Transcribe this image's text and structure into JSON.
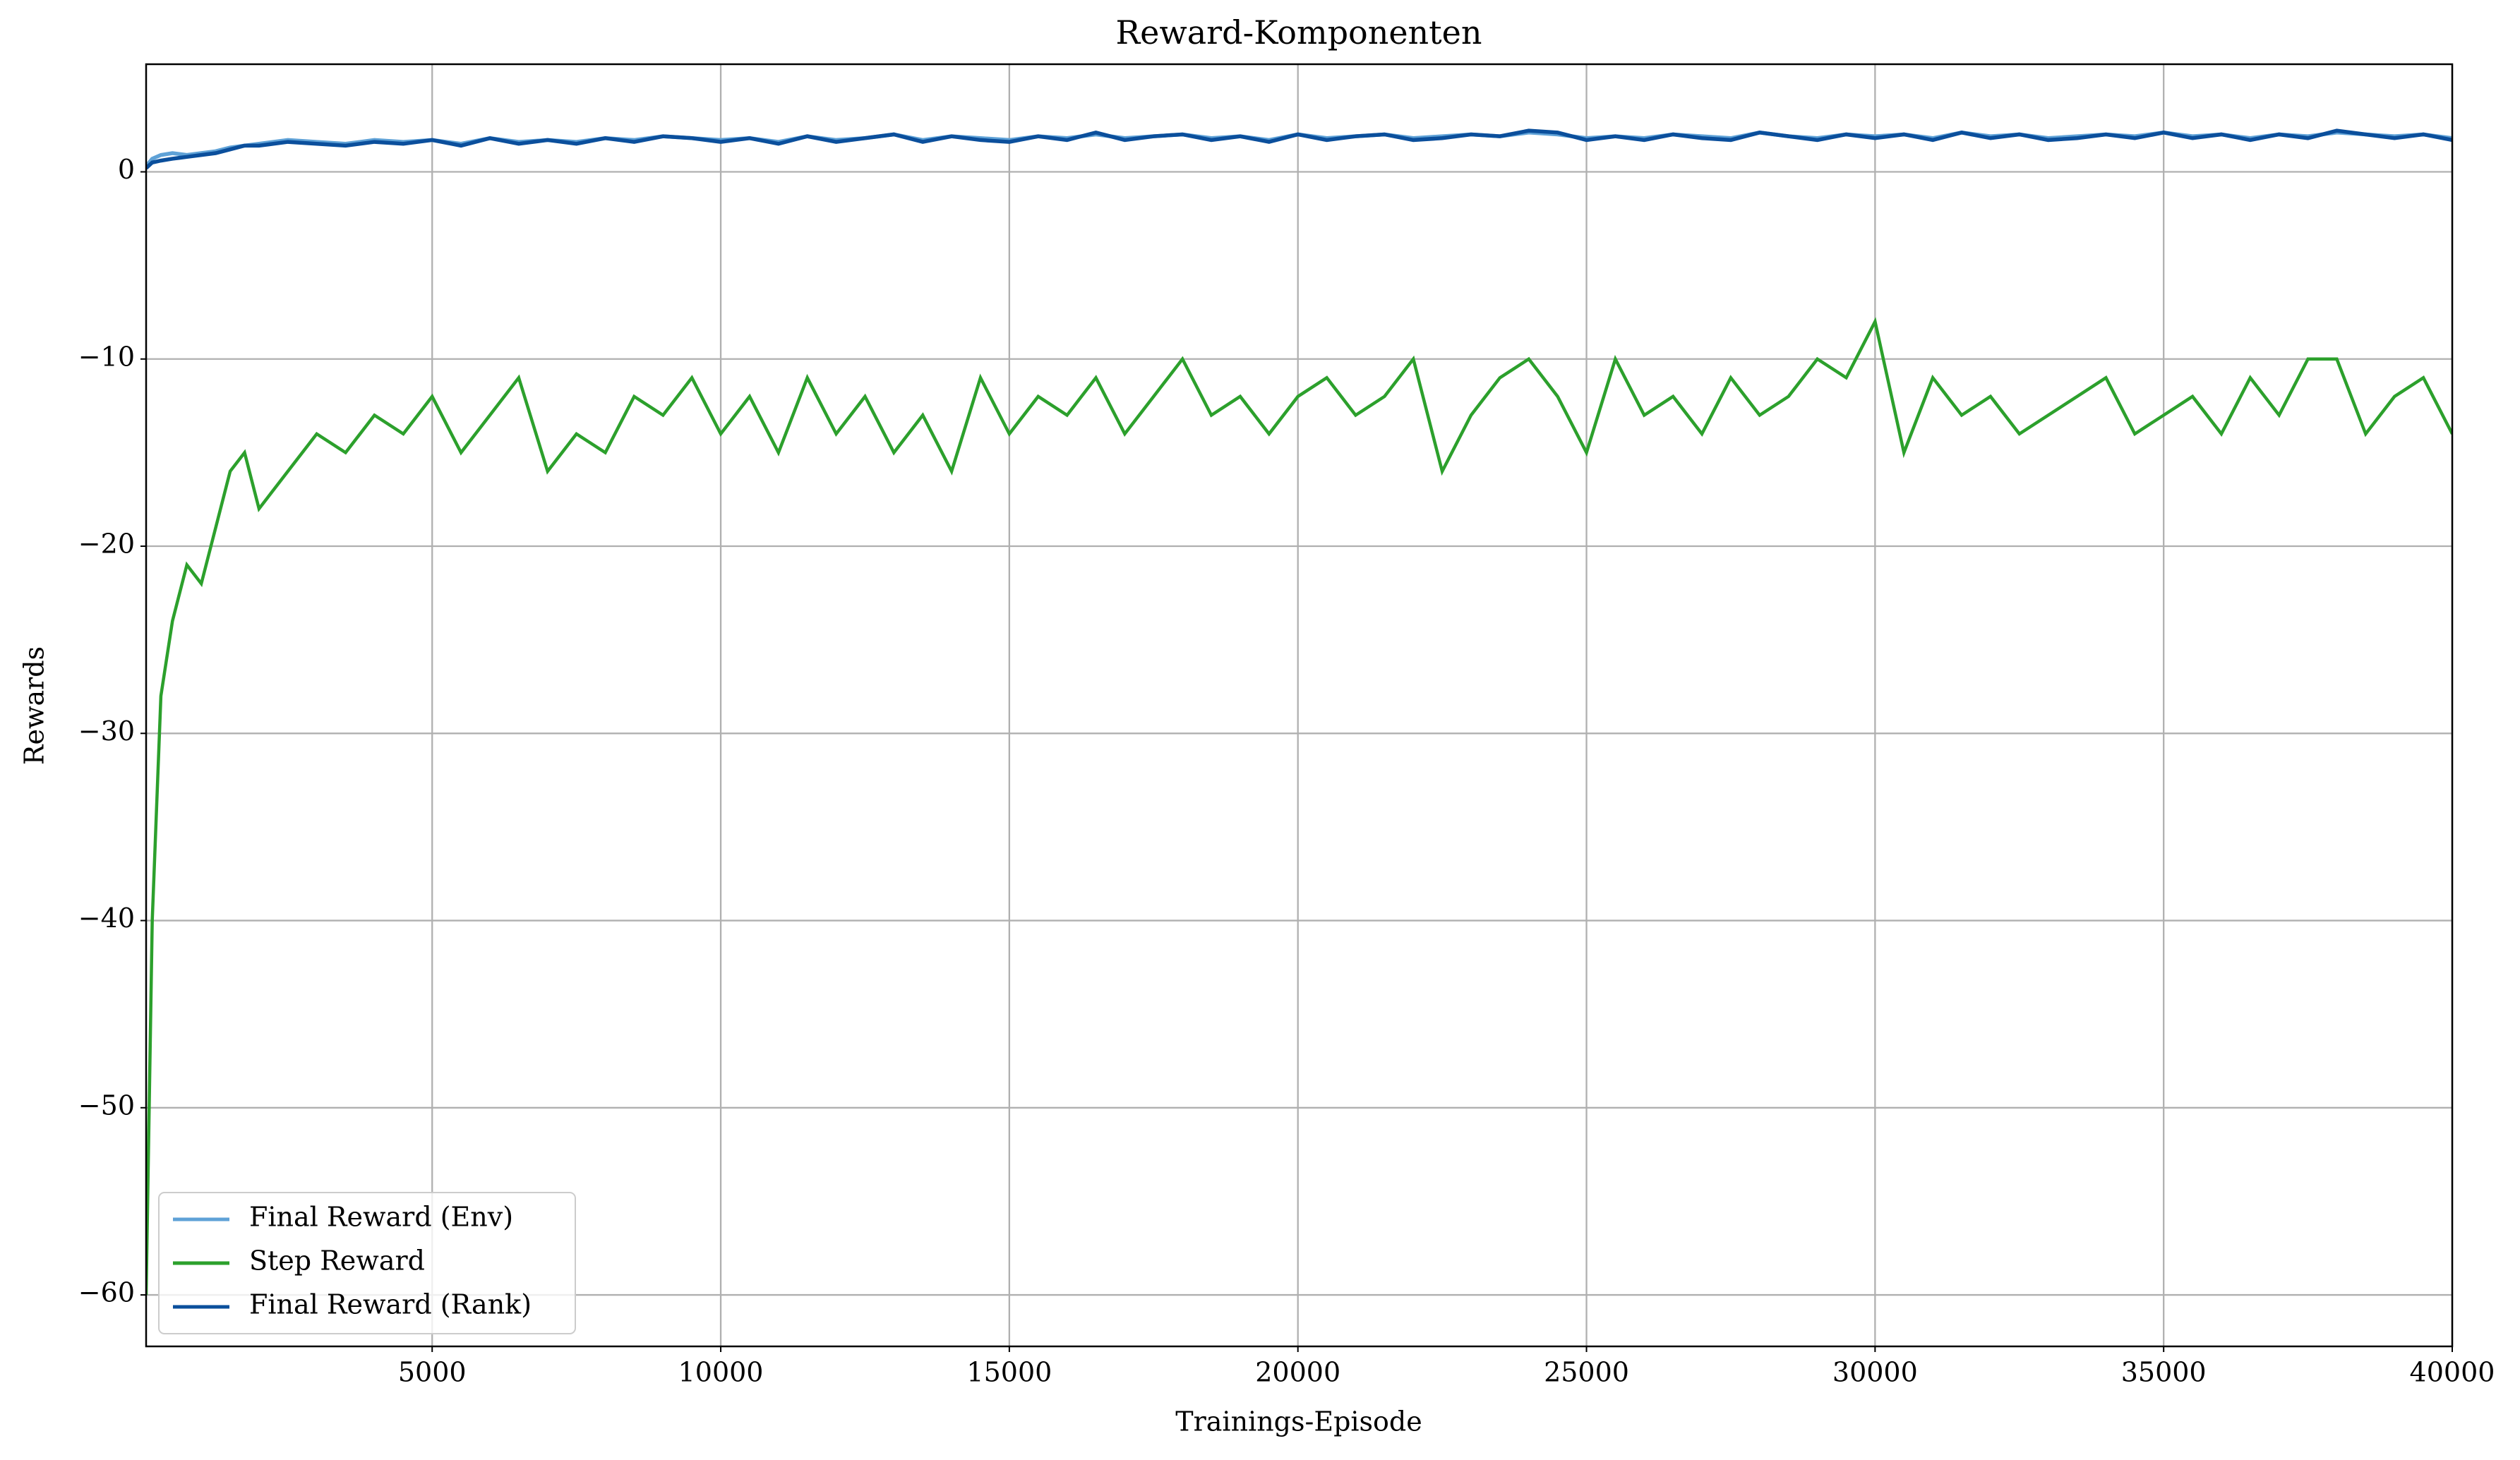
{
  "chart_data": {
    "type": "line",
    "title": "Reward-Komponenten",
    "x_label": "Trainings-Episode",
    "y_label": "Rewards",
    "x": [
      44,
      150,
      300,
      500,
      750,
      1000,
      1250,
      1500,
      1750,
      2000,
      2500,
      3000,
      3500,
      4000,
      4500,
      5000,
      5500,
      6000,
      6500,
      7000,
      7500,
      8000,
      8500,
      9000,
      9500,
      10000,
      10500,
      11000,
      11500,
      12000,
      12500,
      13000,
      13500,
      14000,
      14500,
      15000,
      15500,
      16000,
      16500,
      17000,
      17500,
      18000,
      18500,
      19000,
      19500,
      20000,
      20500,
      21000,
      21500,
      22000,
      22500,
      23000,
      23500,
      24000,
      24500,
      25000,
      25500,
      26000,
      26500,
      27000,
      27500,
      28000,
      28500,
      29000,
      29500,
      30000,
      30500,
      31000,
      31500,
      32000,
      32500,
      33000,
      33500,
      34000,
      34500,
      35000,
      35500,
      36000,
      36500,
      37000,
      37500,
      38000,
      38500,
      39000,
      39500,
      40000
    ],
    "series": [
      {
        "name": "Final Reward (Env)",
        "color": "#5fa2d7",
        "values": [
          0.3,
          0.7,
          0.9,
          1.0,
          0.9,
          1.0,
          1.1,
          1.3,
          1.4,
          1.5,
          1.7,
          1.6,
          1.5,
          1.7,
          1.6,
          1.7,
          1.5,
          1.8,
          1.6,
          1.7,
          1.6,
          1.8,
          1.7,
          1.9,
          1.8,
          1.7,
          1.8,
          1.6,
          1.9,
          1.7,
          1.8,
          2.0,
          1.7,
          1.9,
          1.8,
          1.7,
          1.9,
          1.8,
          2.0,
          1.8,
          1.9,
          2.0,
          1.8,
          1.9,
          1.7,
          2.0,
          1.8,
          1.9,
          2.0,
          1.8,
          1.9,
          2.0,
          1.9,
          2.1,
          2.0,
          1.8,
          1.9,
          1.8,
          2.0,
          1.9,
          1.8,
          2.1,
          1.9,
          1.8,
          2.0,
          1.9,
          2.0,
          1.8,
          2.1,
          1.9,
          2.0,
          1.8,
          1.9,
          2.0,
          1.9,
          2.1,
          1.9,
          2.0,
          1.8,
          2.0,
          1.9,
          2.1,
          2.0,
          1.9,
          2.0,
          1.8
        ]
      },
      {
        "name": "Step Reward",
        "color": "#2ca02c",
        "values": [
          -60,
          -40,
          -28,
          -24,
          -21,
          -22,
          -19,
          -16,
          -15,
          -18,
          -16,
          -14,
          -15,
          -13,
          -14,
          -12,
          -15,
          -13,
          -11,
          -16,
          -14,
          -15,
          -12,
          -13,
          -11,
          -14,
          -12,
          -15,
          -11,
          -14,
          -12,
          -15,
          -13,
          -16,
          -11,
          -14,
          -12,
          -13,
          -11,
          -14,
          -12,
          -10,
          -13,
          -12,
          -14,
          -12,
          -11,
          -13,
          -12,
          -10,
          -16,
          -13,
          -11,
          -10,
          -12,
          -15,
          -10,
          -13,
          -12,
          -14,
          -11,
          -13,
          -12,
          -10,
          -11,
          -8,
          -15,
          -11,
          -13,
          -12,
          -14,
          -13,
          -12,
          -11,
          -14,
          -13,
          -12,
          -14,
          -11,
          -13,
          -10,
          -10,
          -14,
          -12,
          -11,
          -14
        ]
      },
      {
        "name": "Final Reward (Rank)",
        "color": "#0b4f9c",
        "values": [
          0.2,
          0.5,
          0.6,
          0.7,
          0.8,
          0.9,
          1.0,
          1.2,
          1.4,
          1.4,
          1.6,
          1.5,
          1.4,
          1.6,
          1.5,
          1.7,
          1.4,
          1.8,
          1.5,
          1.7,
          1.5,
          1.8,
          1.6,
          1.9,
          1.8,
          1.6,
          1.8,
          1.5,
          1.9,
          1.6,
          1.8,
          2.0,
          1.6,
          1.9,
          1.7,
          1.6,
          1.9,
          1.7,
          2.1,
          1.7,
          1.9,
          2.0,
          1.7,
          1.9,
          1.6,
          2.0,
          1.7,
          1.9,
          2.0,
          1.7,
          1.8,
          2.0,
          1.9,
          2.2,
          2.1,
          1.7,
          1.9,
          1.7,
          2.0,
          1.8,
          1.7,
          2.1,
          1.9,
          1.7,
          2.0,
          1.8,
          2.0,
          1.7,
          2.1,
          1.8,
          2.0,
          1.7,
          1.8,
          2.0,
          1.8,
          2.1,
          1.8,
          2.0,
          1.7,
          2.0,
          1.8,
          2.2,
          2.0,
          1.8,
          2.0,
          1.7
        ]
      }
    ],
    "xlim": [
      44,
      40000
    ],
    "ylim": [
      -62.75,
      5.75
    ],
    "xticks": [
      5000,
      10000,
      15000,
      20000,
      25000,
      30000,
      35000,
      40000
    ],
    "yticks": [
      {
        "value": -60,
        "label": "−60"
      },
      {
        "value": -50,
        "label": "−50"
      },
      {
        "value": -40,
        "label": "−40"
      },
      {
        "value": -30,
        "label": "−30"
      },
      {
        "value": -20,
        "label": "−20"
      },
      {
        "value": -10,
        "label": "−10"
      },
      0
    ],
    "grid": true,
    "legend": "lower left"
  }
}
